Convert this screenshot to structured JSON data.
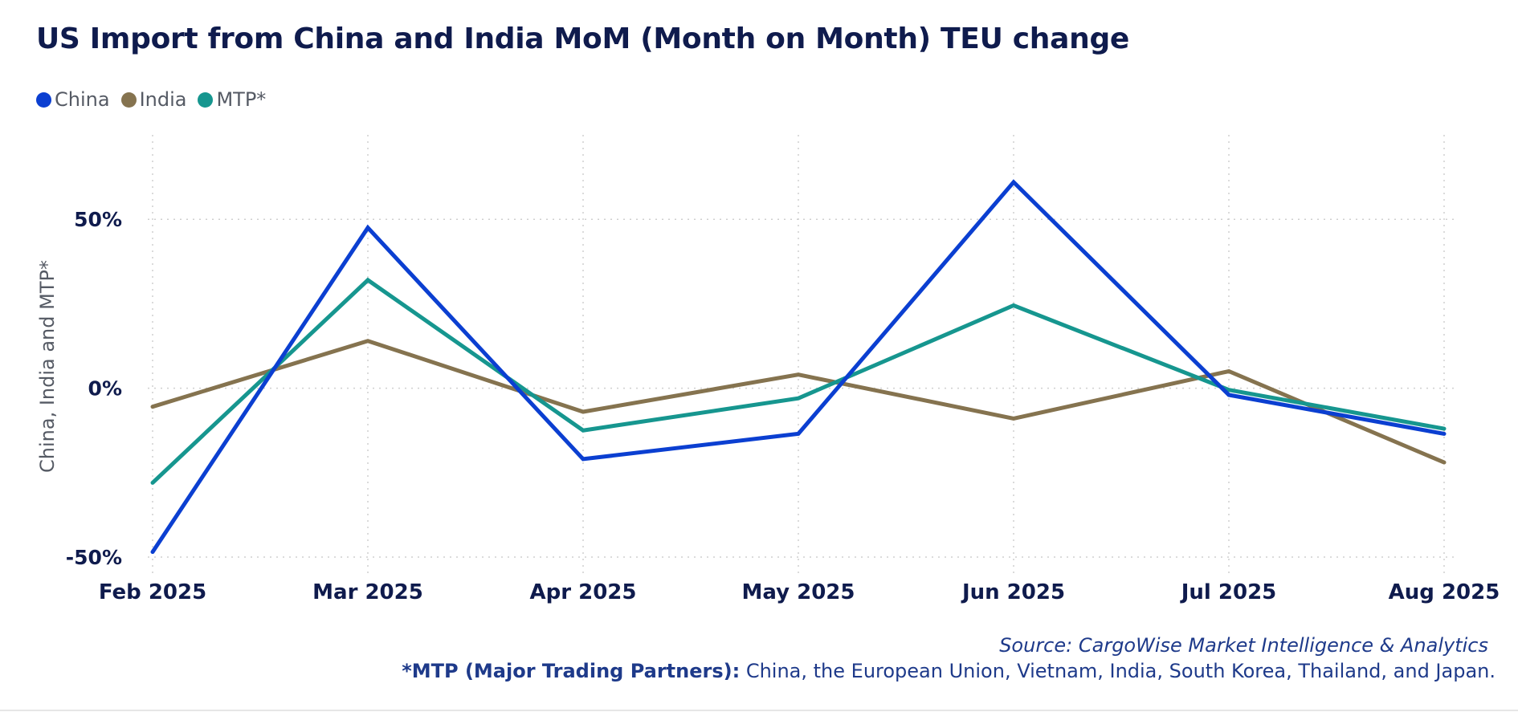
{
  "footer": {
    "source": "Source: CargoWise Market Intelligence & Analytics",
    "footnote_bold": "*MTP (Major Trading Partners):",
    "footnote_text": " China, the European Union, Vietnam, India, South Korea, Thailand, and Japan."
  },
  "chart_data": {
    "type": "line",
    "title": "US Import from China and India MoM (Month on Month) TEU change",
    "xlabel": "",
    "ylabel": "China, India and MTP*",
    "categories": [
      "Feb 2025",
      "Mar 2025",
      "Apr 2025",
      "May 2025",
      "Jun 2025",
      "Jul 2025",
      "Aug 2025"
    ],
    "ylim": [
      -55,
      75
    ],
    "yticks": [
      50,
      0,
      -50
    ],
    "ytick_labels": [
      "50%",
      "0%",
      "-50%"
    ],
    "grid": true,
    "legend_position": "top-left",
    "series": [
      {
        "name": "China",
        "color": "#0b3fd1",
        "values": [
          -48.5,
          47.5,
          -21.0,
          -13.5,
          61.0,
          -2.0,
          -13.5
        ]
      },
      {
        "name": "India",
        "color": "#85734f",
        "values": [
          -5.5,
          14.0,
          -7.0,
          4.0,
          -9.0,
          5.0,
          -22.0
        ]
      },
      {
        "name": "MTP*",
        "color": "#16968f",
        "values": [
          -28.0,
          32.0,
          -12.5,
          -3.0,
          24.5,
          -0.5,
          -12.0
        ]
      }
    ]
  }
}
